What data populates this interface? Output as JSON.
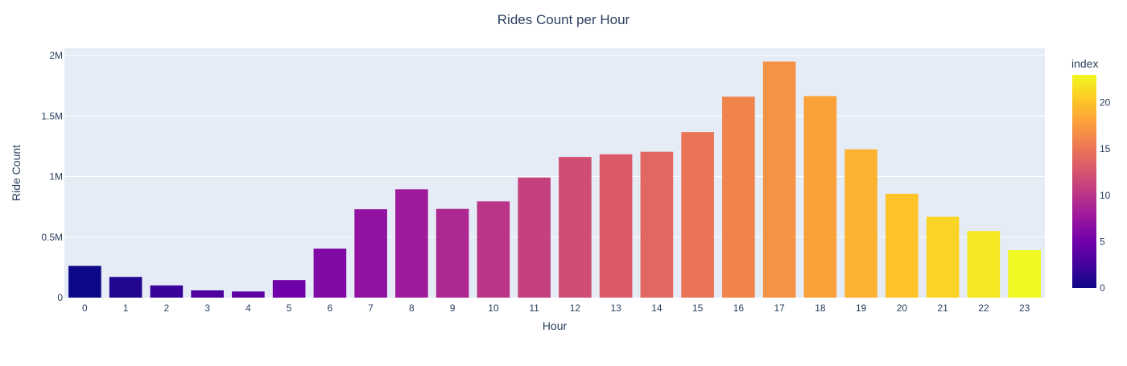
{
  "chart_data": {
    "type": "bar",
    "title": "Rides Count per Hour",
    "xlabel": "Hour",
    "ylabel": "Ride Count",
    "categories": [
      "0",
      "1",
      "2",
      "3",
      "4",
      "5",
      "6",
      "7",
      "8",
      "9",
      "10",
      "11",
      "12",
      "13",
      "14",
      "15",
      "16",
      "17",
      "18",
      "19",
      "20",
      "21",
      "22",
      "23"
    ],
    "values": [
      262000,
      171000,
      101000,
      60000,
      51000,
      145000,
      405000,
      730000,
      895000,
      733000,
      795000,
      992000,
      1162000,
      1184000,
      1205000,
      1368000,
      1660000,
      1950000,
      1665000,
      1225000,
      858000,
      668000,
      550000,
      392000
    ],
    "ylim": [
      0,
      2060000
    ],
    "y_ticks": [
      {
        "value": 0,
        "label": "0"
      },
      {
        "value": 500000,
        "label": "0.5M"
      },
      {
        "value": 1000000,
        "label": "1M"
      },
      {
        "value": 1500000,
        "label": "1.5M"
      },
      {
        "value": 2000000,
        "label": "2M"
      }
    ],
    "grid": true,
    "plot_background": "#e5ecf6",
    "colorbar": {
      "title": "index",
      "range": [
        0,
        23
      ],
      "ticks": [
        "0",
        "5",
        "10",
        "15",
        "20"
      ],
      "colorscale": [
        "#0d0887",
        "#46039f",
        "#7201a8",
        "#9c179e",
        "#bd3786",
        "#d8576b",
        "#ed7953",
        "#fb9f3a",
        "#fdca26",
        "#f0f921"
      ]
    }
  }
}
